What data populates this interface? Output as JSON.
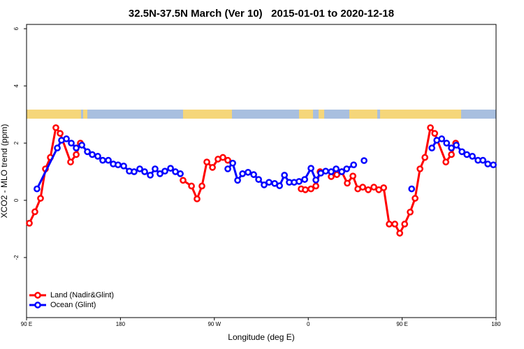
{
  "chart_data": {
    "type": "line",
    "title": "32.5N-37.5N March (Ver 10)   2015-01-01 to 2020-12-18",
    "x_label": "Longitude (deg E)",
    "y_label": "XCO2 - MLO trend (ppm)",
    "xlim": [
      90,
      540
    ],
    "ylim": [
      -4.1,
      6.15
    ],
    "xticks": [
      {
        "value": 90,
        "label": "90 E"
      },
      {
        "value": 180,
        "label": "180"
      },
      {
        "value": 270,
        "label": "90 W"
      },
      {
        "value": 360,
        "label": "0"
      },
      {
        "value": 450,
        "label": "90 E"
      },
      {
        "value": 540,
        "label": "180"
      }
    ],
    "yticks": [
      -2,
      0,
      2,
      4,
      6
    ],
    "legend": "bottomleft",
    "series": [
      {
        "name": "Land (Nadir&Glint)",
        "color": "#ff0000",
        "x": [
          92.7,
          98.0,
          103.4,
          108.1,
          112.8,
          118.1,
          122.2,
          132.2,
          137.6,
          141.6,
          null,
          240.0,
          248.1,
          253.4,
          258.1,
          262.8,
          268.2,
          273.5,
          278.2,
          282.9,
          null,
          353.2,
          357.2,
          362.6,
          367.3,
          371.3,
          null,
          382.0,
          387.4,
          392.1,
          397.4,
          402.8,
          407.5,
          412.2,
          417.5,
          422.9,
          427.6,
          432.3,
          437.6,
          443.0,
          447.7,
          452.4,
          457.7,
          462.4,
          467.1,
          471.8,
          477.1,
          481.2,
          491.9,
          497.2,
          501.3
        ],
        "values": [
          -0.8,
          -0.4,
          0.07,
          1.1,
          1.5,
          2.54,
          2.34,
          1.34,
          1.6,
          2.0,
          null,
          0.7,
          0.5,
          0.05,
          0.5,
          1.34,
          1.15,
          1.44,
          1.5,
          1.4,
          null,
          0.4,
          0.37,
          0.4,
          0.5,
          1.0,
          null,
          0.83,
          0.9,
          1.0,
          0.6,
          0.85,
          0.4,
          0.46,
          0.37,
          0.46,
          0.37,
          0.44,
          -0.83,
          -0.83,
          -1.15,
          -0.83,
          -0.41,
          0.07,
          1.1,
          1.5,
          2.54,
          2.34,
          1.34,
          1.6,
          2.0
        ]
      },
      {
        "name": "Ocean (Glint)",
        "color": "#0000ff",
        "x": [
          100.0,
          119.5,
          123.5,
          128.2,
          132.9,
          137.6,
          143.0,
          148.3,
          153.0,
          158.3,
          163.0,
          168.4,
          173.1,
          177.7,
          183.1,
          188.5,
          193.1,
          198.5,
          203.2,
          208.6,
          213.2,
          217.9,
          222.6,
          228.0,
          232.7,
          237.4,
          null,
          282.9,
          287.6,
          292.3,
          297.0,
          302.3,
          307.7,
          312.4,
          317.7,
          322.4,
          327.8,
          332.5,
          337.2,
          341.8,
          346.5,
          351.2,
          356.6,
          362.6,
          367.3,
          372.0,
          376.7,
          382.0,
          386.7,
          392.1,
          396.8,
          403.5,
          null,
          413.5,
          null,
          459.1,
          null,
          478.5,
          483.2,
          487.9,
          492.6,
          497.2,
          501.9,
          507.3,
          512.0,
          517.3,
          522.7,
          527.4,
          532.1,
          537.4
        ],
        "values": [
          0.4,
          1.83,
          2.1,
          2.15,
          2.0,
          1.83,
          1.93,
          1.7,
          1.6,
          1.54,
          1.4,
          1.4,
          1.27,
          1.24,
          1.2,
          1.02,
          1.0,
          1.1,
          1.0,
          0.88,
          1.1,
          0.93,
          1.02,
          1.12,
          1.0,
          0.93,
          null,
          1.1,
          1.3,
          0.7,
          0.93,
          0.98,
          0.9,
          0.73,
          0.54,
          0.63,
          0.59,
          0.51,
          0.88,
          0.63,
          0.63,
          0.66,
          0.73,
          1.12,
          0.71,
          0.95,
          1.02,
          1.0,
          1.1,
          1.0,
          1.1,
          1.24,
          null,
          1.39,
          null,
          0.4,
          null,
          1.83,
          2.1,
          2.15,
          2.0,
          1.83,
          1.93,
          1.7,
          1.6,
          1.54,
          1.4,
          1.4,
          1.27,
          1.24
        ]
      }
    ]
  }
}
